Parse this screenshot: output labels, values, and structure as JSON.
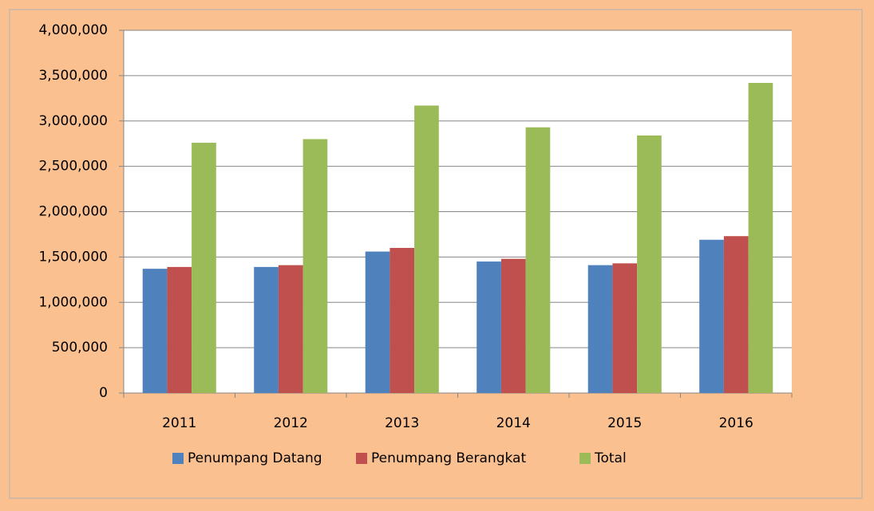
{
  "chart_data": {
    "type": "bar",
    "categories": [
      "2011",
      "2012",
      "2013",
      "2014",
      "2015",
      "2016"
    ],
    "series": [
      {
        "name": "Penumpang Datang",
        "color": "#4f81bd",
        "values": [
          1370000,
          1390000,
          1560000,
          1450000,
          1410000,
          1690000
        ]
      },
      {
        "name": "Penumpang Berangkat",
        "color": "#c0504d",
        "values": [
          1390000,
          1410000,
          1600000,
          1480000,
          1430000,
          1730000
        ]
      },
      {
        "name": "Total",
        "color": "#9bbb59",
        "values": [
          2760000,
          2800000,
          3170000,
          2930000,
          2840000,
          3420000
        ]
      }
    ],
    "ylim": [
      0,
      4000000
    ],
    "yticks": [
      0,
      {
        "value": 500000,
        "label": "500,000"
      },
      {
        "value": 1000000,
        "label": "1,000,000"
      },
      {
        "value": 1500000,
        "label": "1,500,000"
      },
      {
        "value": 2000000,
        "label": "2,000,000"
      },
      {
        "value": 2500000,
        "label": "2,500,000"
      },
      {
        "value": 3000000,
        "label": "3,000,000"
      },
      {
        "value": 3500000,
        "label": "3,500,000"
      },
      {
        "value": 4000000,
        "label": "4,000,000"
      }
    ],
    "grid": true,
    "legend": "bottom"
  }
}
